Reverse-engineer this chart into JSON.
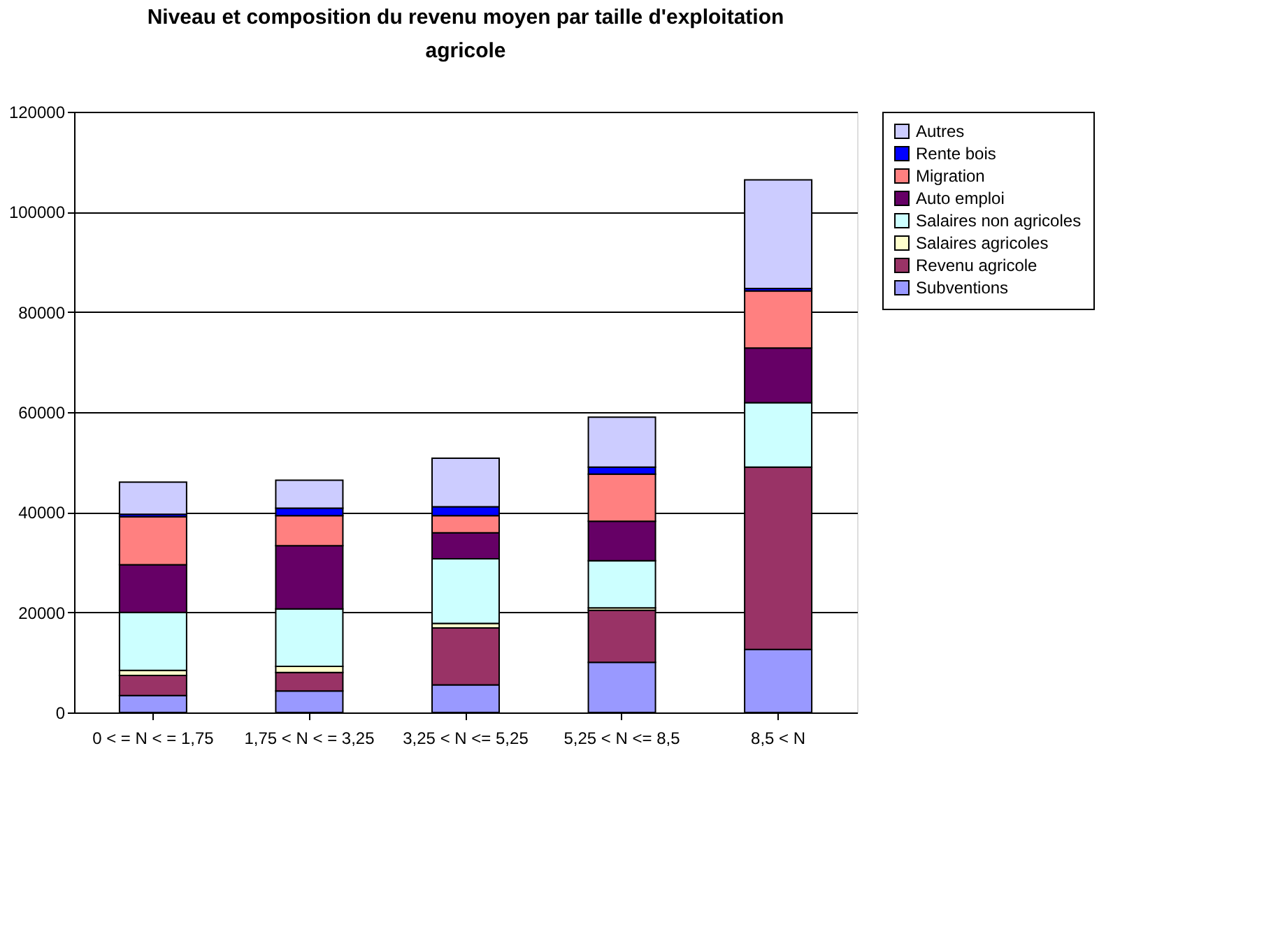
{
  "chart_data": {
    "type": "bar",
    "title": "Niveau et composition du revenu moyen par taille d'exploitation agricole",
    "categories": [
      "0 < =  N < = 1,75",
      "1,75 < N  < = 3,25",
      "3,25 < N <= 5,25",
      "5,25 < N <= 8,5",
      "8,5 < N"
    ],
    "stacked": true,
    "ylim": [
      0,
      120000
    ],
    "yticks": [
      0,
      20000,
      40000,
      60000,
      80000,
      100000,
      120000
    ],
    "grid": "y",
    "legend": "right",
    "series": [
      {
        "name": "Subventions",
        "color": "#9999ff",
        "values": [
          3400,
          4300,
          5500,
          10000,
          12600
        ]
      },
      {
        "name": "Revenu agricole",
        "color": "#993366",
        "values": [
          4000,
          3700,
          11400,
          10400,
          36400
        ]
      },
      {
        "name": "Salaires agricoles",
        "color": "#ffffcc",
        "values": [
          1000,
          1200,
          900,
          500,
          null
        ]
      },
      {
        "name": "Salaires non agricoles",
        "color": "#ccffff",
        "values": [
          11600,
          11500,
          12900,
          9400,
          12900
        ]
      },
      {
        "name": "Auto emploi",
        "color": "#660066",
        "values": [
          9500,
          12600,
          5200,
          7900,
          10900
        ]
      },
      {
        "name": "Migration",
        "color": "#ff8080",
        "values": [
          9600,
          6000,
          3400,
          9400,
          11400
        ]
      },
      {
        "name": "Rente bois",
        "color": "#0000ff",
        "values": [
          500,
          1500,
          1800,
          1400,
          500
        ]
      },
      {
        "name": "Autres",
        "color": "#ccccff",
        "values": [
          6400,
          5600,
          9700,
          10000,
          21700
        ]
      }
    ]
  }
}
